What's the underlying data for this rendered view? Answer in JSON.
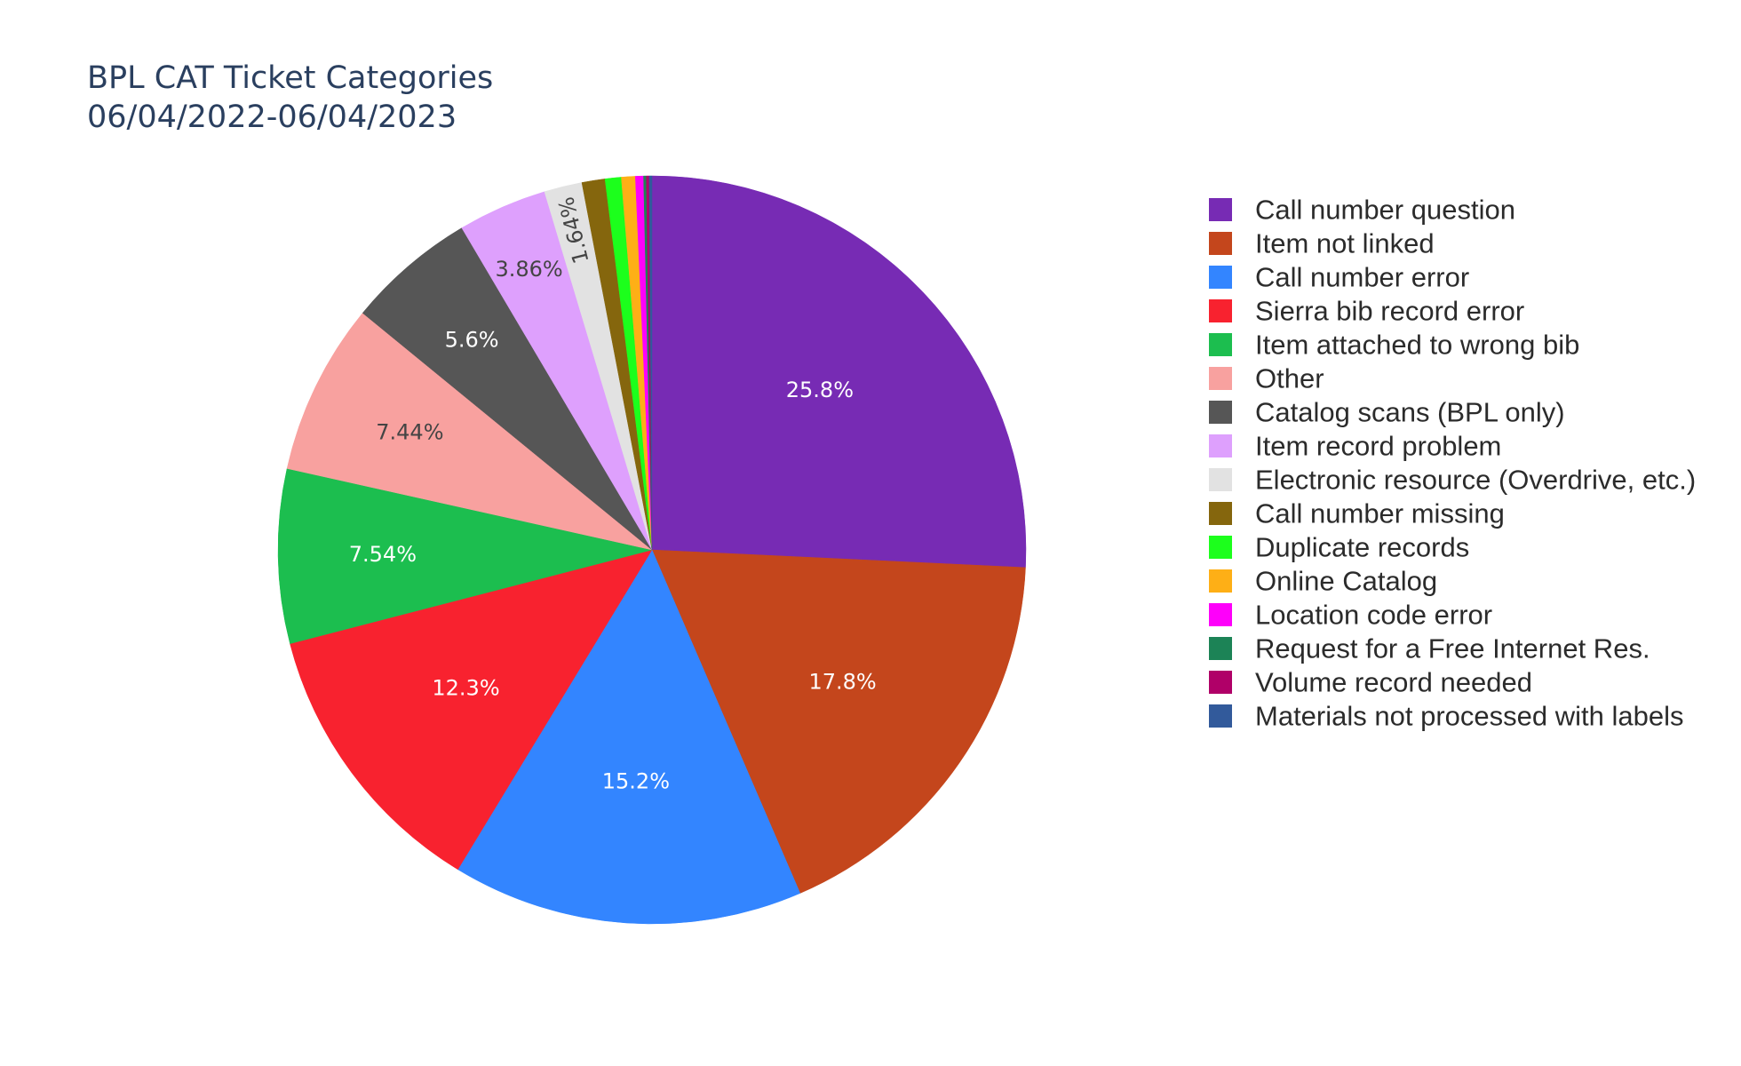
{
  "chart_data": {
    "type": "pie",
    "title": "BPL CAT Ticket Categories",
    "subtitle": "06/04/2022-06/04/2023",
    "legend_position": "right",
    "slices": [
      {
        "label": "Call number question",
        "value": 25.8,
        "text": "25.8%",
        "color": "#772bb4"
      },
      {
        "label": "Item not linked",
        "value": 17.8,
        "text": "17.8%",
        "color": "#c4461c"
      },
      {
        "label": "Call number error",
        "value": 15.2,
        "text": "15.2%",
        "color": "#3385ff"
      },
      {
        "label": "Sierra bib record error",
        "value": 12.3,
        "text": "12.3%",
        "color": "#f8222f"
      },
      {
        "label": "Item attached to wrong bib",
        "value": 7.54,
        "text": "7.54%",
        "color": "#1cbe4f"
      },
      {
        "label": "Other",
        "value": 7.44,
        "text": "7.44%",
        "color": "#f8a19f"
      },
      {
        "label": "Catalog scans (BPL only)",
        "value": 5.6,
        "text": "5.6%",
        "color": "#565656"
      },
      {
        "label": "Item record problem",
        "value": 3.86,
        "text": "3.86%",
        "color": "#dea0fd"
      },
      {
        "label": "Electronic resource (Overdrive, etc.)",
        "value": 1.64,
        "text": "1.64%",
        "color": "#e2e2e2"
      },
      {
        "label": "Call number missing",
        "value": 1.0,
        "text": "",
        "color": "#85660d"
      },
      {
        "label": "Duplicate records",
        "value": 0.7,
        "text": "",
        "color": "#1cff1c"
      },
      {
        "label": "Online Catalog",
        "value": 0.6,
        "text": "",
        "color": "#feaf16"
      },
      {
        "label": "Location code error",
        "value": 0.35,
        "text": "",
        "color": "#fe00fa"
      },
      {
        "label": "Request for a Free Internet Res.",
        "value": 0.12,
        "text": "",
        "color": "#1c8356"
      },
      {
        "label": "Volume record needed",
        "value": 0.12,
        "text": "",
        "color": "#b00068"
      },
      {
        "label": "Materials not processed with labels",
        "value": 0.12,
        "text": "",
        "color": "#325a9b"
      }
    ]
  }
}
